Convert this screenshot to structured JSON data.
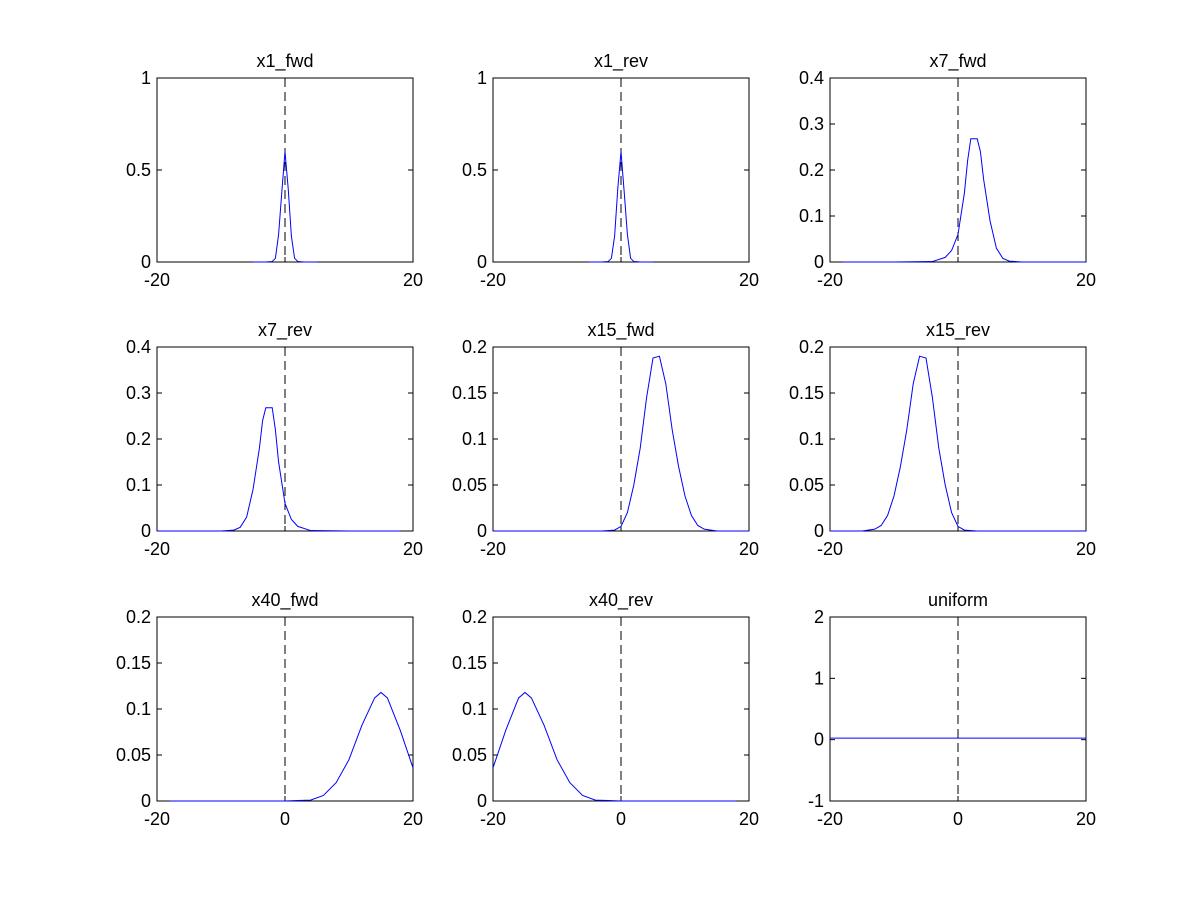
{
  "chart_data": [
    {
      "type": "line",
      "title": "x1_fwd",
      "xlim": [
        -20,
        20
      ],
      "ylim": [
        0,
        1
      ],
      "xticks": [
        -20,
        0,
        20
      ],
      "xtick_labels": [
        "-20",
        "",
        "20"
      ],
      "yticks": [
        0,
        0.5,
        1
      ],
      "ytick_labels": [
        "0",
        "0.5",
        "1"
      ],
      "grid": false,
      "reference_line_x": 0,
      "series": [
        {
          "color": "#0000ff",
          "x": [
            -5,
            -4,
            -3,
            -2,
            -1.5,
            -1,
            -0.5,
            0,
            0.5,
            1,
            1.5,
            2,
            3,
            4,
            5
          ],
          "y": [
            0,
            0,
            0,
            0.003,
            0.02,
            0.15,
            0.38,
            0.6,
            0.4,
            0.14,
            0.02,
            0.003,
            0,
            0,
            0
          ]
        }
      ]
    },
    {
      "type": "line",
      "title": "x1_rev",
      "xlim": [
        -20,
        20
      ],
      "ylim": [
        0,
        1
      ],
      "xticks": [
        -20,
        0,
        20
      ],
      "xtick_labels": [
        "-20",
        "",
        "20"
      ],
      "yticks": [
        0,
        0.5,
        1
      ],
      "ytick_labels": [
        "0",
        "0.5",
        "1"
      ],
      "grid": false,
      "reference_line_x": 0,
      "series": [
        {
          "color": "#0000ff",
          "x": [
            -5,
            -4,
            -3,
            -2,
            -1.5,
            -1,
            -0.5,
            0,
            0.5,
            1,
            1.5,
            2,
            3,
            4,
            5
          ],
          "y": [
            0,
            0,
            0,
            0.003,
            0.02,
            0.14,
            0.4,
            0.6,
            0.38,
            0.15,
            0.02,
            0.003,
            0,
            0,
            0
          ]
        }
      ]
    },
    {
      "type": "line",
      "title": "x7_fwd",
      "xlim": [
        -20,
        20
      ],
      "ylim": [
        0,
        0.4
      ],
      "xticks": [
        -20,
        0,
        20
      ],
      "xtick_labels": [
        "-20",
        "",
        "20"
      ],
      "yticks": [
        0,
        0.1,
        0.2,
        0.3,
        0.4
      ],
      "ytick_labels": [
        "0",
        "0.1",
        "0.2",
        "0.3",
        "0.4"
      ],
      "grid": false,
      "reference_line_x": 0,
      "series": [
        {
          "color": "#0000ff",
          "x": [
            -18,
            -10,
            -4,
            -2,
            -1,
            0,
            1,
            1.5,
            2,
            3,
            3.5,
            4,
            5,
            6,
            7,
            8,
            10,
            20
          ],
          "y": [
            0,
            0,
            0.001,
            0.01,
            0.025,
            0.06,
            0.15,
            0.22,
            0.268,
            0.268,
            0.24,
            0.18,
            0.09,
            0.03,
            0.008,
            0.002,
            0,
            0
          ]
        }
      ]
    },
    {
      "type": "line",
      "title": "x7_rev",
      "xlim": [
        -20,
        20
      ],
      "ylim": [
        0,
        0.4
      ],
      "xticks": [
        -20,
        0,
        20
      ],
      "xtick_labels": [
        "-20",
        "",
        "20"
      ],
      "yticks": [
        0,
        0.1,
        0.2,
        0.3,
        0.4
      ],
      "ytick_labels": [
        "0",
        "0.1",
        "0.2",
        "0.3",
        "0.4"
      ],
      "grid": false,
      "reference_line_x": 0,
      "series": [
        {
          "color": "#0000ff",
          "x": [
            -20,
            -10,
            -8,
            -7,
            -6,
            -5,
            -4,
            -3.5,
            -3,
            -2,
            -1.5,
            -1,
            0,
            1,
            2,
            4,
            10,
            18
          ],
          "y": [
            0,
            0,
            0.002,
            0.008,
            0.03,
            0.09,
            0.18,
            0.24,
            0.268,
            0.268,
            0.22,
            0.15,
            0.06,
            0.025,
            0.01,
            0.001,
            0,
            0
          ]
        }
      ]
    },
    {
      "type": "line",
      "title": "x15_fwd",
      "xlim": [
        -20,
        20
      ],
      "ylim": [
        0,
        0.2
      ],
      "xticks": [
        -20,
        0,
        20
      ],
      "xtick_labels": [
        "-20",
        "",
        "20"
      ],
      "yticks": [
        0,
        0.05,
        0.1,
        0.15,
        0.2
      ],
      "ytick_labels": [
        "0",
        "0.05",
        "0.1",
        "0.15",
        "0.2"
      ],
      "grid": false,
      "reference_line_x": 0,
      "series": [
        {
          "color": "#0000ff",
          "x": [
            -20,
            -3,
            -1,
            0,
            1,
            2,
            3,
            4,
            5,
            6,
            7,
            8,
            9,
            10,
            11,
            12,
            13,
            15,
            20
          ],
          "y": [
            0,
            0,
            0.001,
            0.005,
            0.02,
            0.05,
            0.09,
            0.145,
            0.188,
            0.19,
            0.16,
            0.11,
            0.07,
            0.038,
            0.017,
            0.006,
            0.002,
            0,
            0
          ]
        }
      ]
    },
    {
      "type": "line",
      "title": "x15_rev",
      "xlim": [
        -20,
        20
      ],
      "ylim": [
        0,
        0.2
      ],
      "xticks": [
        -20,
        0,
        20
      ],
      "xtick_labels": [
        "-20",
        "",
        "20"
      ],
      "yticks": [
        0,
        0.05,
        0.1,
        0.15,
        0.2
      ],
      "ytick_labels": [
        "0",
        "0.05",
        "0.1",
        "0.15",
        "0.2"
      ],
      "grid": false,
      "reference_line_x": 0,
      "series": [
        {
          "color": "#0000ff",
          "x": [
            -20,
            -15,
            -13,
            -12,
            -11,
            -10,
            -9,
            -8,
            -7,
            -6,
            -5,
            -4,
            -3,
            -2,
            -1,
            0,
            1,
            3,
            20
          ],
          "y": [
            0,
            0,
            0.002,
            0.006,
            0.017,
            0.038,
            0.07,
            0.11,
            0.16,
            0.19,
            0.188,
            0.145,
            0.09,
            0.05,
            0.02,
            0.005,
            0.001,
            0,
            0
          ]
        }
      ]
    },
    {
      "type": "line",
      "title": "x40_fwd",
      "xlim": [
        -20,
        20
      ],
      "ylim": [
        0,
        0.2
      ],
      "xticks": [
        -20,
        0,
        20
      ],
      "xtick_labels": [
        "-20",
        "0",
        "20"
      ],
      "yticks": [
        0,
        0.05,
        0.1,
        0.15,
        0.2
      ],
      "ytick_labels": [
        "0",
        "0.05",
        "0.1",
        "0.15",
        "0.2"
      ],
      "grid": false,
      "reference_line_x": 0,
      "series": [
        {
          "color": "#0000ff",
          "x": [
            -18,
            0,
            2,
            4,
            6,
            8,
            10,
            12,
            14,
            15,
            16,
            18,
            20
          ],
          "y": [
            0,
            0,
            0.0005,
            0.001,
            0.006,
            0.02,
            0.045,
            0.082,
            0.112,
            0.118,
            0.112,
            0.077,
            0.036
          ]
        }
      ]
    },
    {
      "type": "line",
      "title": "x40_rev",
      "xlim": [
        -20,
        20
      ],
      "ylim": [
        0,
        0.2
      ],
      "xticks": [
        -20,
        0,
        20
      ],
      "xtick_labels": [
        "-20",
        "0",
        "20"
      ],
      "yticks": [
        0,
        0.05,
        0.1,
        0.15,
        0.2
      ],
      "ytick_labels": [
        "0",
        "0.05",
        "0.1",
        "0.15",
        "0.2"
      ],
      "grid": false,
      "reference_line_x": 0,
      "series": [
        {
          "color": "#0000ff",
          "x": [
            -20,
            -18,
            -16,
            -15,
            -14,
            -12,
            -10,
            -8,
            -6,
            -4,
            -2,
            0,
            18
          ],
          "y": [
            0.036,
            0.077,
            0.112,
            0.118,
            0.112,
            0.082,
            0.045,
            0.02,
            0.006,
            0.001,
            0.0005,
            0,
            0
          ]
        }
      ]
    },
    {
      "type": "line",
      "title": "uniform",
      "xlim": [
        -20,
        20
      ],
      "ylim": [
        -1,
        2
      ],
      "xticks": [
        -20,
        0,
        20
      ],
      "xtick_labels": [
        "-20",
        "0",
        "20"
      ],
      "yticks": [
        -1,
        0,
        1,
        2
      ],
      "ytick_labels": [
        "-1",
        "0",
        "1",
        "2"
      ],
      "grid": false,
      "reference_line_x": 0,
      "series": [
        {
          "color": "#0000ff",
          "x": [
            -20,
            20
          ],
          "y": [
            0.025,
            0.025
          ]
        }
      ]
    }
  ]
}
